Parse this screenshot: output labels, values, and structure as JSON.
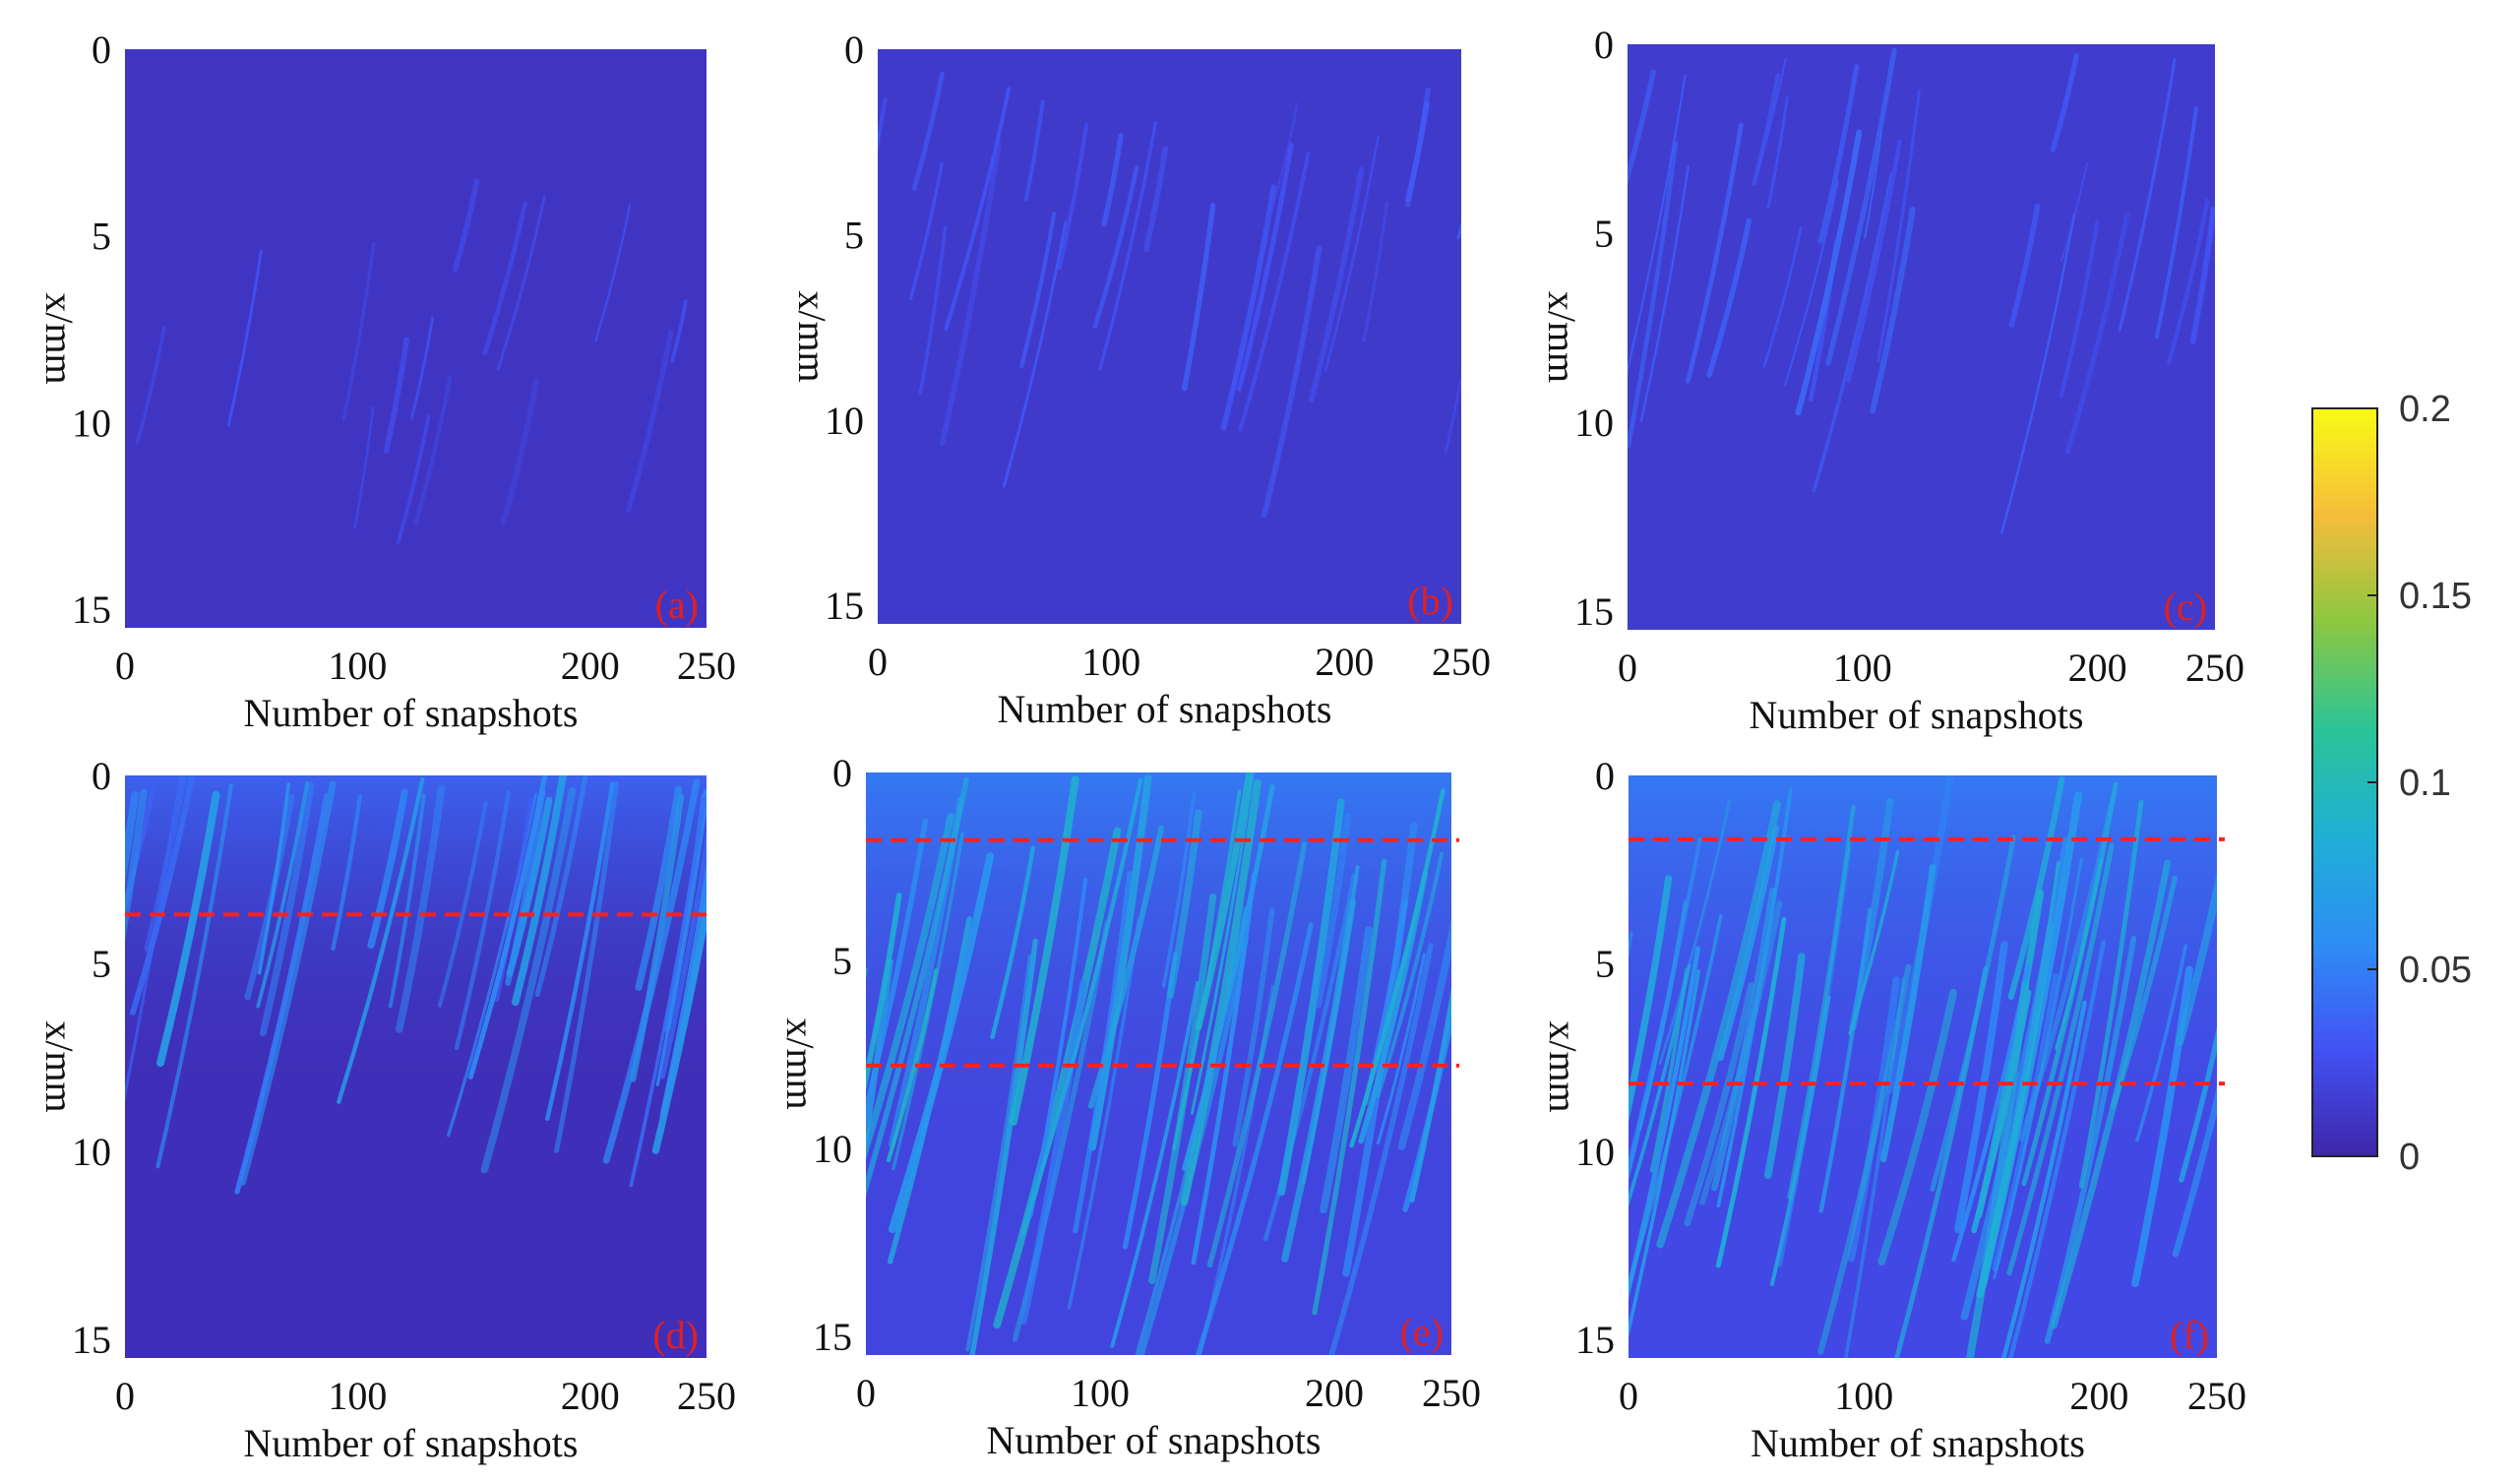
{
  "figure": {
    "type": "multi-panel heatmap",
    "colormap": "parula",
    "colormap_stops": [
      "#3e26a8",
      "#4352f4",
      "#2d8ef4",
      "#1fb0d4",
      "#2bc497",
      "#8cc741",
      "#f5bd3b",
      "#f9fb15"
    ],
    "annotation_color": "#ff2020",
    "background": "#ffffff"
  },
  "chart_data": [
    {
      "type": "heatmap",
      "panel_label": "(a)",
      "xlabel": "Number of snapshots",
      "ylabel": "x/mm",
      "xlim": [
        0,
        250
      ],
      "ylim": [
        0,
        15.5
      ],
      "x_ticks": [
        "0",
        "100",
        "200",
        "250"
      ],
      "y_ticks": [
        "0",
        "5",
        "10",
        "15"
      ],
      "x_tick_values": [
        0,
        100,
        200,
        250
      ],
      "y_tick_values": [
        0,
        5,
        10,
        15
      ],
      "base_level": 0.01,
      "streak_level": 0.03,
      "streak_density": "sparse",
      "dashed_lines_at_x_mm": []
    },
    {
      "type": "heatmap",
      "panel_label": "(b)",
      "xlabel": "Number of snapshots",
      "ylabel": "x/mm",
      "xlim": [
        0,
        250
      ],
      "ylim": [
        0,
        15.5
      ],
      "x_ticks": [
        "0",
        "100",
        "200",
        "250"
      ],
      "y_ticks": [
        "0",
        "5",
        "10",
        "15"
      ],
      "x_tick_values": [
        0,
        100,
        200,
        250
      ],
      "y_tick_values": [
        0,
        5,
        10,
        15
      ],
      "base_level": 0.013,
      "streak_level": 0.035,
      "streak_density": "moderate",
      "dashed_lines_at_x_mm": []
    },
    {
      "type": "heatmap",
      "panel_label": "(c)",
      "xlabel": "Number of snapshots",
      "ylabel": "x/mm",
      "xlim": [
        0,
        250
      ],
      "ylim": [
        0,
        15.5
      ],
      "x_ticks": [
        "0",
        "100",
        "200",
        "250"
      ],
      "y_ticks": [
        "0",
        "5",
        "10",
        "15"
      ],
      "x_tick_values": [
        0,
        100,
        200,
        250
      ],
      "y_tick_values": [
        0,
        5,
        10,
        15
      ],
      "base_level": 0.014,
      "streak_level": 0.04,
      "streak_density": "moderate",
      "dashed_lines_at_x_mm": []
    },
    {
      "type": "heatmap",
      "panel_label": "(d)",
      "xlabel": "Number of snapshots",
      "ylabel": "x/mm",
      "xlim": [
        0,
        250
      ],
      "ylim": [
        0,
        15.5
      ],
      "x_ticks": [
        "0",
        "100",
        "200",
        "250"
      ],
      "y_ticks": [
        "0",
        "5",
        "10",
        "15"
      ],
      "x_tick_values": [
        0,
        100,
        200,
        250
      ],
      "y_tick_values": [
        0,
        5,
        10,
        15
      ],
      "base_level": 0.006,
      "streak_level": 0.07,
      "streak_density": "dense near top, fading by 10 mm",
      "dashed_lines_at_x_mm": [
        3.7
      ]
    },
    {
      "type": "heatmap",
      "panel_label": "(e)",
      "xlabel": "Number of snapshots",
      "ylabel": "x/mm",
      "xlim": [
        0,
        250
      ],
      "ylim": [
        0,
        15.5
      ],
      "x_ticks": [
        "0",
        "100",
        "200",
        "250"
      ],
      "y_ticks": [
        "0",
        "5",
        "10",
        "15"
      ],
      "x_tick_values": [
        0,
        100,
        200,
        250
      ],
      "y_tick_values": [
        0,
        5,
        10,
        15
      ],
      "base_level": 0.02,
      "streak_level": 0.09,
      "streak_density": "dense",
      "dashed_lines_at_x_mm": [
        1.8,
        7.8
      ]
    },
    {
      "type": "heatmap",
      "panel_label": "(f)",
      "xlabel": "Number of snapshots",
      "ylabel": "x/mm",
      "xlim": [
        0,
        250
      ],
      "ylim": [
        0,
        15.5
      ],
      "x_ticks": [
        "0",
        "100",
        "200",
        "250"
      ],
      "y_ticks": [
        "0",
        "5",
        "10",
        "15"
      ],
      "x_tick_values": [
        0,
        100,
        200,
        250
      ],
      "y_tick_values": [
        0,
        5,
        10,
        15
      ],
      "base_level": 0.022,
      "streak_level": 0.09,
      "streak_density": "dense",
      "dashed_lines_at_x_mm": [
        1.7,
        8.2
      ]
    }
  ],
  "colorbar": {
    "min": 0,
    "max": 0.2,
    "tick_values": [
      0,
      0.05,
      0.1,
      0.15,
      0.2
    ],
    "tick_labels": [
      "0",
      "0.05",
      "0.1",
      "0.15",
      "0.2"
    ]
  }
}
